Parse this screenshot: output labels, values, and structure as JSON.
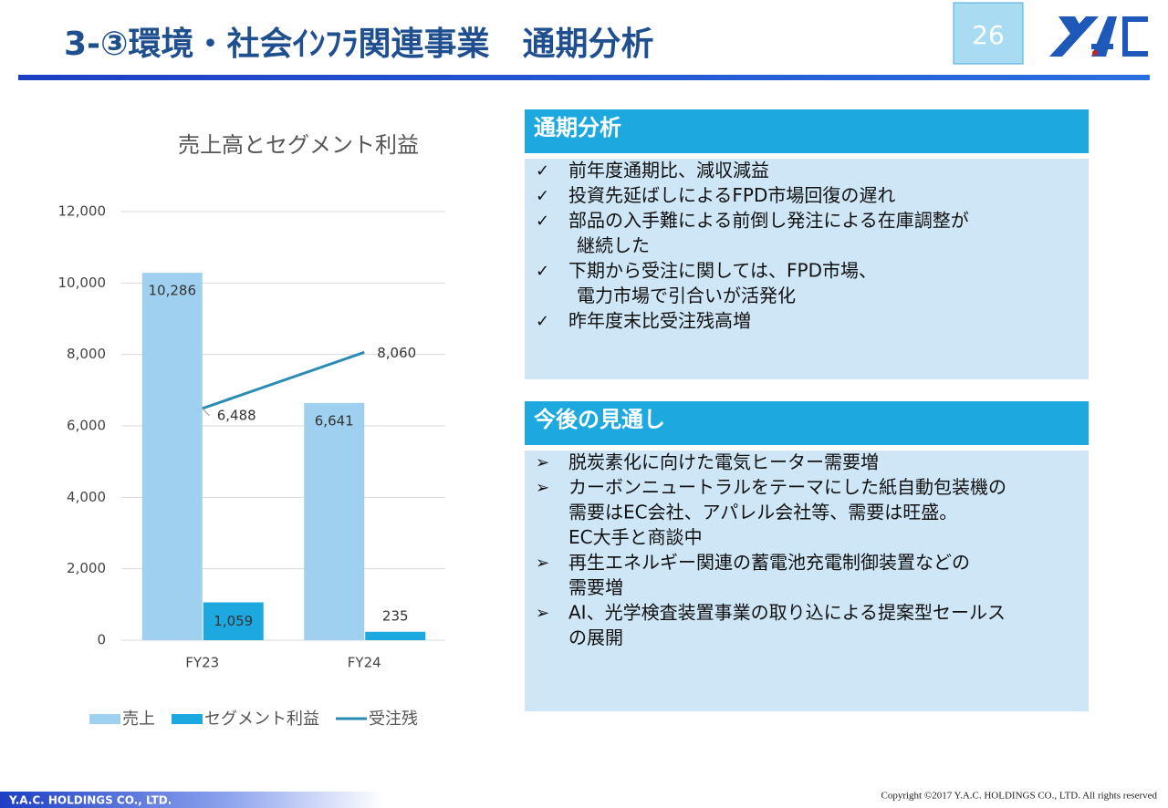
{
  "header": {
    "title": "3-③環境・社会ｲﾝﾌﾗ関連事業　通期分析",
    "page_number": "26"
  },
  "chart_data": {
    "type": "bar",
    "title": "売上高とセグメント利益",
    "categories": [
      "FY23",
      "FY24"
    ],
    "series": [
      {
        "name": "売上",
        "color": "#9fd0ef",
        "values": [
          10286,
          6641
        ],
        "value_labels": [
          "10,286",
          "6,641"
        ]
      },
      {
        "name": "セグメント利益",
        "color": "#1ea8e0",
        "values": [
          1059,
          235
        ],
        "value_labels": [
          "1,059",
          "235"
        ]
      },
      {
        "name": "受注残",
        "type": "line",
        "color": "#2a8bb5",
        "values": [
          6488,
          8060
        ],
        "value_labels": [
          "6,488",
          "8,060"
        ]
      }
    ],
    "ylim": [
      0,
      12000
    ],
    "yticks": [
      0,
      {
        "value": 2000,
        "label": "2,000"
      },
      {
        "value": 4000,
        "label": "4,000"
      },
      {
        "value": 6000,
        "label": "6,000"
      },
      {
        "value": 8000,
        "label": "8,000"
      },
      {
        "value": 10000,
        "label": "10,000"
      },
      {
        "value": 12000,
        "label": "12,000"
      }
    ],
    "grid": true,
    "legend": "bottom"
  },
  "panels": [
    {
      "title": "通期分析",
      "items": [
        {
          "marker": "✓",
          "lines": [
            "前年度通期比、減収減益"
          ]
        },
        {
          "marker": "✓",
          "lines": [
            "投資先延ばしによるFPD市場回復の遅れ"
          ]
        },
        {
          "marker": "✓",
          "lines": [
            "部品の入手難による前倒し発注による在庫調整が",
            "継続した"
          ]
        },
        {
          "marker": "✓",
          "lines": [
            "下期から受注に関しては、FPD市場、",
            "電力市場で引合いが活発化"
          ]
        },
        {
          "marker": "✓",
          "lines": [
            "昨年度末比受注残高増"
          ]
        }
      ]
    },
    {
      "title": "今後の見通し",
      "items": [
        {
          "marker": "➢",
          "lines": [
            "脱炭素化に向けた電気ヒーター需要増"
          ]
        },
        {
          "marker": "➢",
          "lines": [
            "カーボンニュートラルをテーマにした紙自動包装機の",
            "需要はEC会社、アパレル会社等、需要は旺盛。",
            "EC大手と商談中"
          ]
        },
        {
          "marker": "➢",
          "lines": [
            "再生エネルギー関連の蓄電池充電制御装置などの",
            "需要増"
          ]
        },
        {
          "marker": "➢",
          "lines": [
            "AI、光学検査装置事業の取り込による提案型セールス",
            "の展開"
          ]
        }
      ]
    }
  ],
  "footer": {
    "company": "Y.A.C. HOLDINGS CO., LTD.",
    "copyright": "Copyright ©2017 Y.A.C. HOLDINGS CO., LTD.  All rights reserved"
  }
}
